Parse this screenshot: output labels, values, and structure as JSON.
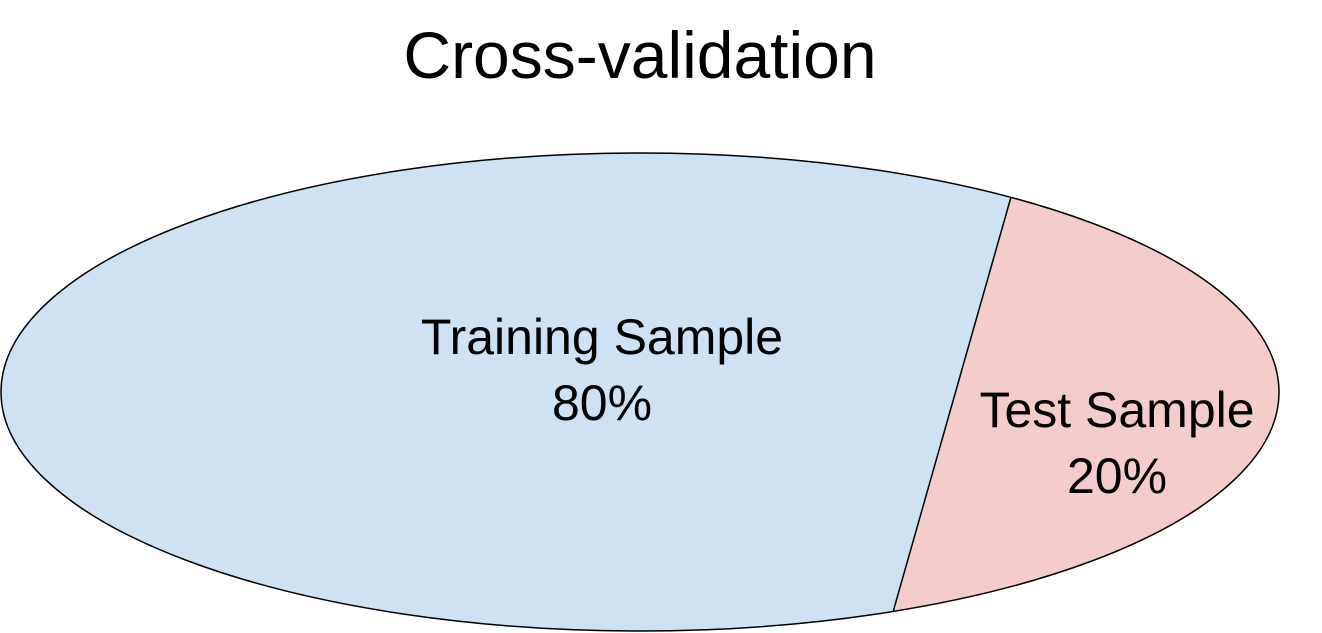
{
  "title": "Cross-validation",
  "regions": [
    {
      "label": "Training Sample",
      "value": "80%",
      "fill": "#cfe2f3"
    },
    {
      "label": "Test Sample",
      "value": "20%",
      "fill": "#f4cccc"
    }
  ],
  "colors": {
    "outline": "#000000",
    "text": "#000000"
  }
}
